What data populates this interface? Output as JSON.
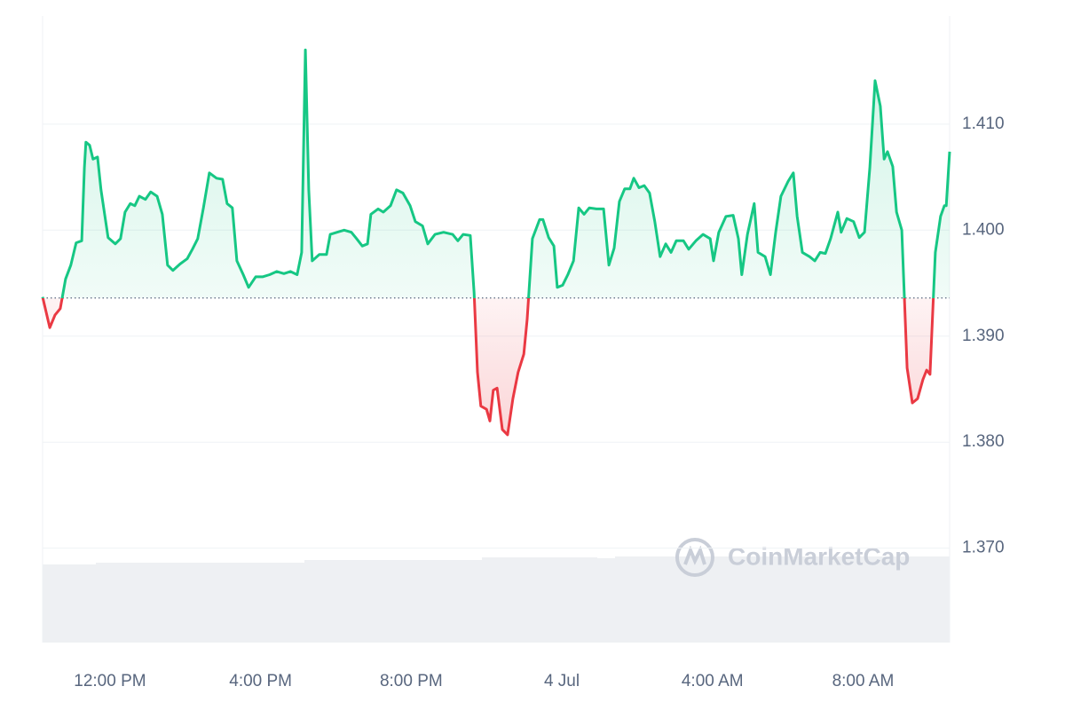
{
  "chart_data": {
    "type": "line",
    "watermark": "CoinMarketCap",
    "x": [
      10.21,
      10.4,
      10.54,
      10.68,
      10.82,
      10.96,
      11.1,
      11.25,
      11.32,
      11.36,
      11.46,
      11.55,
      11.67,
      11.76,
      11.95,
      12.14,
      12.28,
      12.4,
      12.54,
      12.66,
      12.78,
      12.94,
      13.08,
      13.25,
      13.39,
      13.53,
      13.67,
      13.86,
      14.05,
      14.19,
      14.33,
      14.48,
      14.64,
      14.83,
      14.99,
      15.11,
      15.25,
      15.37,
      15.54,
      15.68,
      15.87,
      16.05,
      16.24,
      16.43,
      16.62,
      16.79,
      16.97,
      17.09,
      17.19,
      17.28,
      17.37,
      17.56,
      17.75,
      17.85,
      18.03,
      18.22,
      18.41,
      18.55,
      18.7,
      18.84,
      18.93,
      19.12,
      19.26,
      19.45,
      19.61,
      19.78,
      19.97,
      20.11,
      20.3,
      20.44,
      20.63,
      20.86,
      21.1,
      21.24,
      21.38,
      21.57,
      21.67,
      21.76,
      21.85,
      22.0,
      22.09,
      22.18,
      22.28,
      22.42,
      22.56,
      22.7,
      22.84,
      22.99,
      23.08,
      23.22,
      23.41,
      23.5,
      23.65,
      23.79,
      23.88,
      24.02,
      24.16,
      24.31,
      24.45,
      24.59,
      24.73,
      24.92,
      25.11,
      25.25,
      25.39,
      25.53,
      25.67,
      25.81,
      25.91,
      26.05,
      26.19,
      26.33,
      26.47,
      26.61,
      26.76,
      26.9,
      27.04,
      27.23,
      27.37,
      27.56,
      27.75,
      27.94,
      28.03,
      28.17,
      28.36,
      28.55,
      28.69,
      28.78,
      28.93,
      29.11,
      29.21,
      29.4,
      29.54,
      29.68,
      29.82,
      30.01,
      30.15,
      30.25,
      30.39,
      30.58,
      30.72,
      30.86,
      31.0,
      31.14,
      31.33,
      31.42,
      31.57,
      31.75,
      31.9,
      32.04,
      32.18,
      32.32,
      32.46,
      32.56,
      32.65,
      32.79,
      32.89,
      33.03,
      33.17,
      33.31,
      33.45,
      33.59,
      33.69,
      33.78,
      33.92,
      34.06,
      34.16,
      34.21,
      34.3
    ],
    "values": [
      1.3937,
      1.3908,
      1.392,
      1.3926,
      1.3954,
      1.3967,
      1.3988,
      1.399,
      1.4059,
      1.4083,
      1.408,
      1.4067,
      1.4069,
      1.4038,
      1.3993,
      1.3987,
      1.3992,
      1.4017,
      1.4025,
      1.4023,
      1.4032,
      1.4029,
      1.4036,
      1.4032,
      1.4015,
      1.3967,
      1.3962,
      1.3968,
      1.3973,
      1.3982,
      1.3992,
      1.4021,
      1.4054,
      1.4049,
      1.4048,
      1.4025,
      1.4021,
      1.3971,
      1.3958,
      1.3946,
      1.3956,
      1.3956,
      1.3958,
      1.3961,
      1.3959,
      1.3961,
      1.3958,
      1.3979,
      1.417,
      1.4038,
      1.3971,
      1.3977,
      1.3977,
      1.3996,
      1.3998,
      1.4,
      1.3998,
      1.3992,
      1.3985,
      1.3987,
      1.4015,
      1.402,
      1.4017,
      1.4023,
      1.4038,
      1.4035,
      1.4023,
      1.4008,
      1.4004,
      1.3987,
      1.3996,
      1.3998,
      1.3996,
      1.399,
      1.3996,
      1.3995,
      1.3941,
      1.3866,
      1.3834,
      1.3831,
      1.382,
      1.3849,
      1.3851,
      1.3812,
      1.3807,
      1.3841,
      1.3866,
      1.3883,
      1.3916,
      1.3992,
      1.401,
      1.401,
      1.3993,
      1.3985,
      1.3946,
      1.3948,
      1.3958,
      1.3971,
      1.4021,
      1.4015,
      1.4021,
      1.402,
      1.402,
      1.3967,
      1.3983,
      1.4027,
      1.4039,
      1.4039,
      1.4049,
      1.404,
      1.4042,
      1.4035,
      1.4008,
      1.3975,
      1.3987,
      1.3979,
      1.399,
      1.399,
      1.3982,
      1.399,
      1.3996,
      1.3992,
      1.3971,
      1.3998,
      1.4013,
      1.4014,
      1.3992,
      1.3958,
      1.3996,
      1.4025,
      1.3979,
      1.3975,
      1.3958,
      1.3998,
      1.4032,
      1.4046,
      1.4054,
      1.4013,
      1.3979,
      1.3975,
      1.3971,
      1.3979,
      1.3978,
      1.3992,
      1.4017,
      1.3998,
      1.4011,
      1.4008,
      1.3993,
      1.3998,
      1.4059,
      1.4141,
      1.4117,
      1.4067,
      1.4074,
      1.406,
      1.4017,
      1.4,
      1.387,
      1.3837,
      1.3841,
      1.3859,
      1.3868,
      1.3864,
      1.3979,
      1.4013,
      1.4023,
      1.4023,
      1.4074
    ],
    "baseline": 1.3936,
    "color_above": "#16c784",
    "color_below": "#ea3943",
    "xlim": [
      10.21,
      34.3
    ],
    "ylim": [
      1.3611,
      1.4202
    ],
    "xticks": [
      {
        "value": 12,
        "label": "12:00 PM"
      },
      {
        "value": 16,
        "label": "4:00 PM"
      },
      {
        "value": 20,
        "label": "8:00 PM"
      },
      {
        "value": 24,
        "label": "4 Jul"
      },
      {
        "value": 28,
        "label": "4:00 AM"
      },
      {
        "value": 32,
        "label": "8:00 AM"
      }
    ],
    "yticks": [
      {
        "value": 1.37,
        "label": "1.370"
      },
      {
        "value": 1.38,
        "label": "1.380"
      },
      {
        "value": 1.39,
        "label": "1.390"
      },
      {
        "value": 1.4,
        "label": "1.400"
      },
      {
        "value": 1.41,
        "label": "1.410"
      }
    ],
    "grid": true
  }
}
